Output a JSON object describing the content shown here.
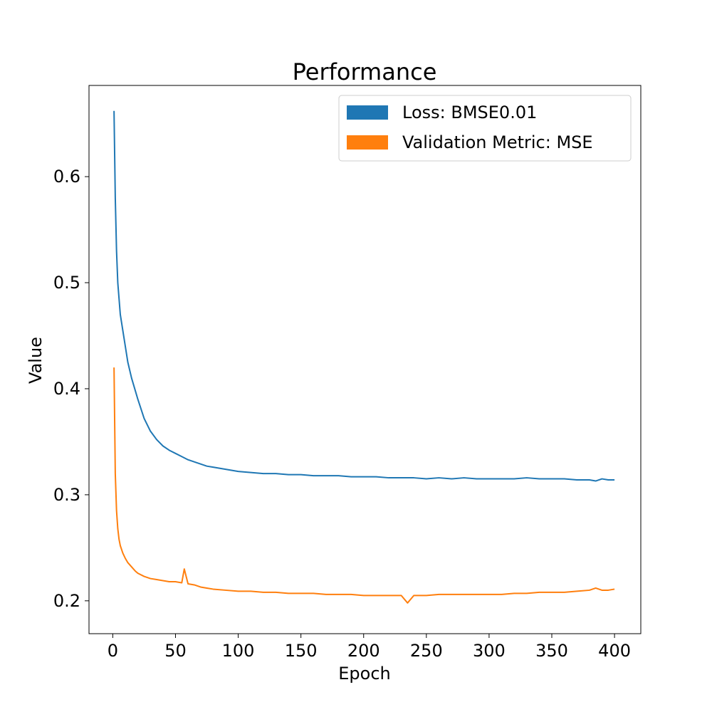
{
  "chart_data": {
    "type": "line",
    "title": "Performance",
    "xlabel": "Epoch",
    "ylabel": "Value",
    "xlim": [
      -18.95,
      420.95
    ],
    "ylim": [
      0.169,
      0.686
    ],
    "xticks": [
      0,
      50,
      100,
      150,
      200,
      250,
      300,
      350,
      400
    ],
    "xtick_labels": [
      "0",
      "50",
      "100",
      "150",
      "200",
      "250",
      "300",
      "350",
      "400"
    ],
    "yticks": [
      0.2,
      0.3,
      0.4,
      0.5,
      0.6
    ],
    "ytick_labels": [
      "0.2",
      "0.3",
      "0.4",
      "0.5",
      "0.6"
    ],
    "grid": false,
    "legend_position": "top-right",
    "series": [
      {
        "name": "Loss: BMSE0.01",
        "color": "#1f77b4",
        "x": [
          1,
          2,
          3,
          4,
          5,
          6,
          8,
          10,
          12,
          15,
          18,
          20,
          25,
          30,
          35,
          40,
          45,
          50,
          55,
          60,
          65,
          70,
          75,
          80,
          90,
          100,
          110,
          120,
          130,
          140,
          150,
          160,
          170,
          180,
          190,
          200,
          210,
          220,
          230,
          240,
          250,
          260,
          270,
          280,
          290,
          300,
          310,
          320,
          330,
          340,
          350,
          360,
          370,
          380,
          385,
          390,
          395,
          400
        ],
        "y": [
          0.662,
          0.58,
          0.53,
          0.5,
          0.485,
          0.47,
          0.455,
          0.44,
          0.425,
          0.41,
          0.398,
          0.39,
          0.372,
          0.36,
          0.352,
          0.346,
          0.342,
          0.339,
          0.336,
          0.333,
          0.331,
          0.329,
          0.327,
          0.326,
          0.324,
          0.322,
          0.321,
          0.32,
          0.32,
          0.319,
          0.319,
          0.318,
          0.318,
          0.318,
          0.317,
          0.317,
          0.317,
          0.316,
          0.316,
          0.316,
          0.315,
          0.316,
          0.315,
          0.316,
          0.315,
          0.315,
          0.315,
          0.315,
          0.316,
          0.315,
          0.315,
          0.315,
          0.314,
          0.314,
          0.313,
          0.315,
          0.314,
          0.314
        ]
      },
      {
        "name": "Validation Metric: MSE",
        "color": "#ff7f0e",
        "x": [
          1,
          2,
          3,
          4,
          5,
          6,
          8,
          10,
          12,
          15,
          18,
          20,
          25,
          30,
          35,
          40,
          45,
          50,
          55,
          57,
          60,
          65,
          70,
          75,
          80,
          90,
          100,
          110,
          120,
          130,
          140,
          150,
          160,
          170,
          180,
          190,
          200,
          210,
          220,
          230,
          235,
          240,
          250,
          260,
          270,
          280,
          290,
          300,
          310,
          320,
          330,
          340,
          350,
          360,
          370,
          380,
          385,
          390,
          395,
          400
        ],
        "y": [
          0.42,
          0.32,
          0.285,
          0.268,
          0.258,
          0.252,
          0.245,
          0.24,
          0.236,
          0.232,
          0.228,
          0.226,
          0.223,
          0.221,
          0.22,
          0.219,
          0.218,
          0.218,
          0.217,
          0.23,
          0.216,
          0.215,
          0.213,
          0.212,
          0.211,
          0.21,
          0.209,
          0.209,
          0.208,
          0.208,
          0.207,
          0.207,
          0.207,
          0.206,
          0.206,
          0.206,
          0.205,
          0.205,
          0.205,
          0.205,
          0.198,
          0.205,
          0.205,
          0.206,
          0.206,
          0.206,
          0.206,
          0.206,
          0.206,
          0.207,
          0.207,
          0.208,
          0.208,
          0.208,
          0.209,
          0.21,
          0.212,
          0.21,
          0.21,
          0.211
        ]
      }
    ]
  }
}
